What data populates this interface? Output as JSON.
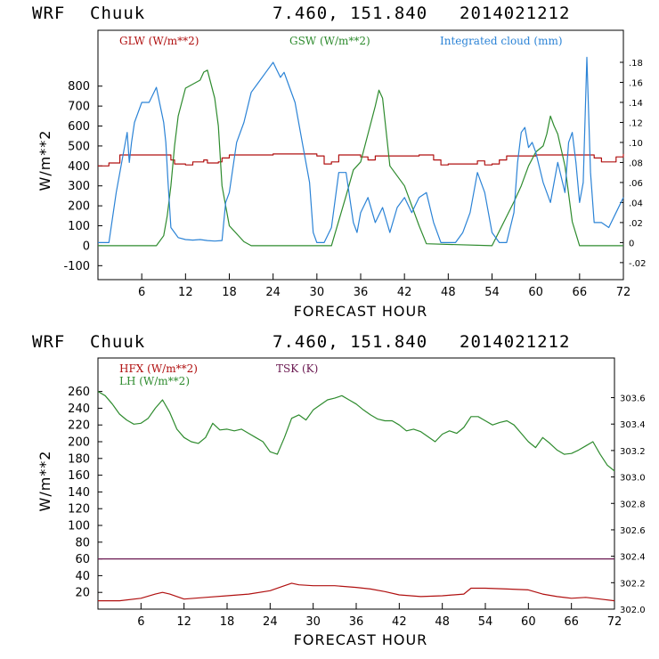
{
  "chart_data": [
    {
      "type": "line",
      "header": {
        "model": "WRF",
        "station": "Chuuk",
        "coords": "7.460, 151.840",
        "run": "2014021212"
      },
      "xlabel": "FORECAST HOUR",
      "ylabel": "W/m**2",
      "xlim": [
        0,
        72
      ],
      "ylim": [
        -170,
        1080
      ],
      "y2lim": [
        -0.037,
        0.212
      ],
      "xticks": [
        6,
        12,
        18,
        24,
        30,
        36,
        42,
        48,
        54,
        60,
        66,
        72
      ],
      "yticks": [
        -100,
        0,
        100,
        200,
        300,
        400,
        500,
        600,
        700,
        800
      ],
      "y2ticks": [
        -0.02,
        0,
        0.02,
        0.04,
        0.06,
        0.08,
        0.1,
        0.12,
        0.14,
        0.16,
        0.18
      ],
      "y2ticklabels": [
        "-.02",
        "0",
        ".02",
        ".04",
        ".06",
        ".08",
        ".10",
        ".12",
        ".14",
        ".16",
        ".18"
      ],
      "series": [
        {
          "name": "GLW (W/m**2)",
          "color": "#b01010",
          "axis": "left",
          "step": true,
          "x": [
            0,
            1.5,
            3,
            9,
            10,
            10.5,
            12,
            13,
            14.5,
            15,
            16.5,
            17,
            18,
            24,
            30,
            31,
            32,
            33,
            36,
            37,
            38,
            44,
            46,
            47,
            48,
            52,
            53,
            54,
            55,
            56,
            60,
            66,
            68,
            69,
            71,
            72
          ],
          "y": [
            400,
            415,
            455,
            455,
            430,
            410,
            405,
            420,
            430,
            415,
            420,
            440,
            455,
            460,
            450,
            410,
            420,
            455,
            445,
            430,
            450,
            455,
            430,
            405,
            410,
            425,
            405,
            410,
            430,
            450,
            455,
            455,
            440,
            420,
            445,
            460
          ]
        },
        {
          "name": "GSW (W/m**2)",
          "color": "#2e8b2e",
          "axis": "left",
          "x": [
            0,
            8,
            9,
            9.5,
            10,
            10.5,
            11,
            12,
            13,
            14,
            14.5,
            15,
            16,
            16.5,
            17,
            17.5,
            18,
            20,
            21,
            26,
            28,
            30,
            32,
            34,
            35,
            36,
            37,
            38,
            38.5,
            39,
            40,
            42,
            43,
            44,
            45,
            54,
            57,
            58,
            59,
            60,
            61,
            61.5,
            62,
            62.5,
            63,
            64,
            65,
            66,
            72
          ],
          "y": [
            0,
            0,
            50,
            150,
            300,
            500,
            650,
            790,
            810,
            830,
            870,
            880,
            740,
            600,
            300,
            200,
            100,
            20,
            0,
            0,
            0,
            0,
            0,
            250,
            380,
            420,
            560,
            700,
            780,
            740,
            400,
            300,
            200,
            100,
            10,
            0,
            220,
            300,
            400,
            470,
            500,
            560,
            650,
            600,
            560,
            400,
            120,
            0,
            0
          ]
        },
        {
          "name": "Integrated cloud (mm)",
          "color": "#2b83d6",
          "axis": "right",
          "x": [
            0,
            1.5,
            2.5,
            3.5,
            4,
            4.3,
            4.6,
            5,
            6,
            7,
            8,
            9,
            9.3,
            9.6,
            10,
            10.5,
            11,
            12,
            13,
            14,
            15,
            16,
            17,
            17.5,
            18,
            19,
            20,
            21,
            22,
            23,
            24,
            25,
            25.5,
            26,
            27,
            28,
            29,
            29.5,
            30,
            31,
            32,
            33,
            34,
            35,
            35.5,
            36,
            37,
            38,
            39,
            40,
            41,
            42,
            43,
            44,
            45,
            46,
            47,
            48,
            49,
            50,
            51,
            52,
            53,
            54,
            55,
            56,
            57,
            57.5,
            58,
            58.5,
            59,
            59.5,
            60,
            61,
            62,
            63,
            64,
            64.5,
            65,
            65.5,
            66,
            66.5,
            67,
            67.5,
            68,
            69,
            70,
            71,
            72
          ],
          "y": [
            0,
            0,
            0.05,
            0.09,
            0.11,
            0.08,
            0.1,
            0.12,
            0.14,
            0.14,
            0.155,
            0.12,
            0.1,
            0.06,
            0.015,
            0.01,
            0.005,
            0.003,
            0.0025,
            0.003,
            0.002,
            0.0015,
            0.002,
            0.04,
            0.05,
            0.1,
            0.12,
            0.15,
            0.16,
            0.17,
            0.18,
            0.165,
            0.17,
            0.16,
            0.14,
            0.1,
            0.06,
            0.01,
            0,
            0,
            0.015,
            0.07,
            0.07,
            0.02,
            0.01,
            0.03,
            0.045,
            0.02,
            0.035,
            0.01,
            0.035,
            0.045,
            0.03,
            0.045,
            0.05,
            0.02,
            0,
            0,
            0,
            0.01,
            0.03,
            0.07,
            0.05,
            0.01,
            0,
            0,
            0.03,
            0.08,
            0.11,
            0.115,
            0.095,
            0.1,
            0.09,
            0.06,
            0.04,
            0.08,
            0.05,
            0.1,
            0.11,
            0.08,
            0.04,
            0.06,
            0.185,
            0.07,
            0.02,
            0.02,
            0.015,
            0.03,
            0.045
          ]
        }
      ]
    },
    {
      "type": "line",
      "header": {
        "model": "WRF",
        "station": "Chuuk",
        "coords": "7.460, 151.840",
        "run": "2014021212"
      },
      "xlabel": "FORECAST HOUR",
      "ylabel": "W/m**2",
      "xlim": [
        0,
        72
      ],
      "ylim": [
        0,
        300
      ],
      "y2lim": [
        302.0,
        303.9
      ],
      "xticks": [
        6,
        12,
        18,
        24,
        30,
        36,
        42,
        48,
        54,
        60,
        66,
        72
      ],
      "yticks": [
        20,
        40,
        60,
        80,
        100,
        120,
        140,
        160,
        180,
        200,
        220,
        240,
        260
      ],
      "y2ticks": [
        302.0,
        302.2,
        302.4,
        302.6,
        302.8,
        303.0,
        303.2,
        303.4,
        303.6
      ],
      "y2ticklabels": [
        "302.0",
        "302.2",
        "302.4",
        "302.6",
        "302.8",
        "303.0",
        "303.2",
        "303.4",
        "303.6"
      ],
      "series": [
        {
          "name": "HFX (W/m**2)",
          "color": "#b01010",
          "axis": "left",
          "x": [
            0,
            3,
            6,
            8,
            9,
            10,
            12,
            15,
            18,
            21,
            24,
            26,
            27,
            28,
            30,
            33,
            36,
            38,
            40,
            42,
            45,
            48,
            51,
            52,
            54,
            57,
            60,
            62,
            64,
            66,
            68,
            70,
            72
          ],
          "y": [
            10,
            10,
            13,
            18,
            20,
            18,
            12,
            14,
            16,
            18,
            22,
            28,
            31,
            29,
            28,
            28,
            26,
            24,
            21,
            17,
            15,
            16,
            18,
            25,
            25,
            24,
            23,
            18,
            15,
            13,
            14,
            12,
            10
          ]
        },
        {
          "name": "LH  (W/m**2)",
          "color": "#2e8b2e",
          "axis": "left",
          "x": [
            0,
            1,
            2,
            3,
            4,
            5,
            6,
            7,
            8,
            9,
            10,
            11,
            12,
            13,
            14,
            15,
            16,
            17,
            18,
            19,
            20,
            21,
            22,
            23,
            24,
            25,
            26,
            27,
            28,
            29,
            30,
            31,
            32,
            33,
            34,
            35,
            36,
            37,
            38,
            39,
            40,
            41,
            42,
            43,
            44,
            45,
            46,
            47,
            48,
            49,
            50,
            51,
            52,
            53,
            54,
            55,
            56,
            57,
            58,
            59,
            60,
            61,
            62,
            63,
            64,
            65,
            66,
            67,
            68,
            69,
            70,
            71,
            72
          ],
          "y": [
            260,
            255,
            245,
            233,
            226,
            221,
            222,
            228,
            240,
            250,
            235,
            215,
            205,
            200,
            198,
            205,
            222,
            214,
            215,
            213,
            215,
            210,
            205,
            200,
            188,
            185,
            205,
            228,
            232,
            226,
            238,
            244,
            250,
            252,
            255,
            250,
            245,
            238,
            232,
            227,
            225,
            225,
            220,
            213,
            215,
            212,
            206,
            200,
            209,
            213,
            210,
            217,
            230,
            230,
            225,
            220,
            223,
            225,
            220,
            210,
            200,
            193,
            205,
            198,
            190,
            185,
            186,
            190,
            195,
            200,
            185,
            172,
            165
          ]
        },
        {
          "name": "TSK (K)",
          "color": "#6a1850",
          "axis": "right",
          "x": [
            0,
            72
          ],
          "y": [
            302.38,
            302.38
          ]
        }
      ]
    }
  ]
}
